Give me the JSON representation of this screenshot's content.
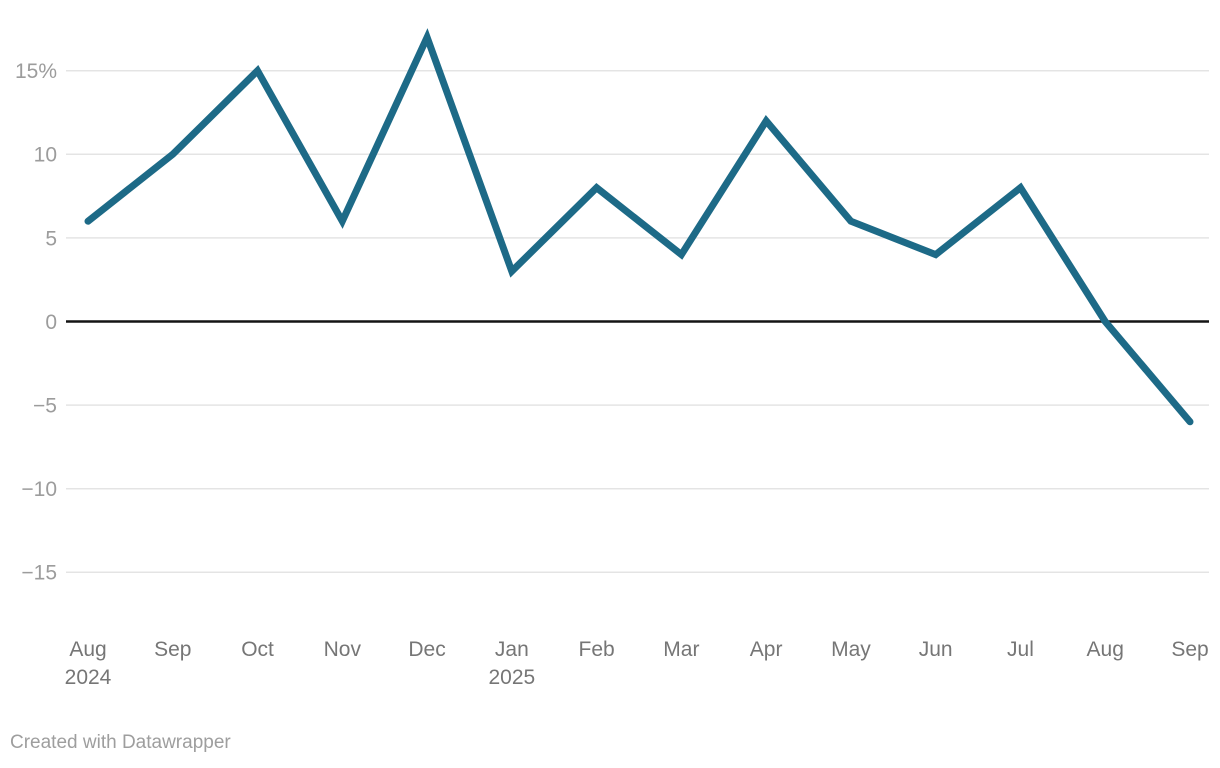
{
  "chart_data": {
    "type": "line",
    "title": "",
    "xlabel": "",
    "ylabel": "",
    "unit": "%",
    "categories": [
      "Aug 2024",
      "Sep",
      "Oct",
      "Nov",
      "Dec",
      "Jan 2025",
      "Feb",
      "Mar",
      "Apr",
      "May",
      "Jun",
      "Jul",
      "Aug",
      "Sep"
    ],
    "x_tick_lines": [
      [
        "Aug",
        "2024"
      ],
      [
        "Sep"
      ],
      [
        "Oct"
      ],
      [
        "Nov"
      ],
      [
        "Dec"
      ],
      [
        "Jan",
        "2025"
      ],
      [
        "Feb"
      ],
      [
        "Mar"
      ],
      [
        "Apr"
      ],
      [
        "May"
      ],
      [
        "Jun"
      ],
      [
        "Jul"
      ],
      [
        "Aug"
      ],
      [
        "Sep"
      ]
    ],
    "series": [
      {
        "name": "series-1",
        "values": [
          6,
          10,
          15,
          6,
          17,
          3,
          8,
          4,
          12,
          6,
          4,
          8,
          0,
          -6
        ]
      }
    ],
    "y_ticks": [
      {
        "value": 15,
        "label": "15%"
      },
      {
        "value": 10,
        "label": "10"
      },
      {
        "value": 5,
        "label": "5"
      },
      {
        "value": 0,
        "label": "0"
      },
      {
        "value": -5,
        "label": "−5"
      },
      {
        "value": -10,
        "label": "−10"
      },
      {
        "value": -15,
        "label": "−15"
      }
    ],
    "ylim": [
      -15,
      17
    ],
    "grid": "horizontal",
    "legend": "none",
    "zero_baseline": true,
    "colors": {
      "line": "#1d6a87",
      "gridline": "#e4e4e4",
      "zero_line": "#141414",
      "y_label": "#9c9c9c",
      "x_label": "#767676"
    }
  },
  "footer": {
    "attribution": "Created with Datawrapper"
  }
}
